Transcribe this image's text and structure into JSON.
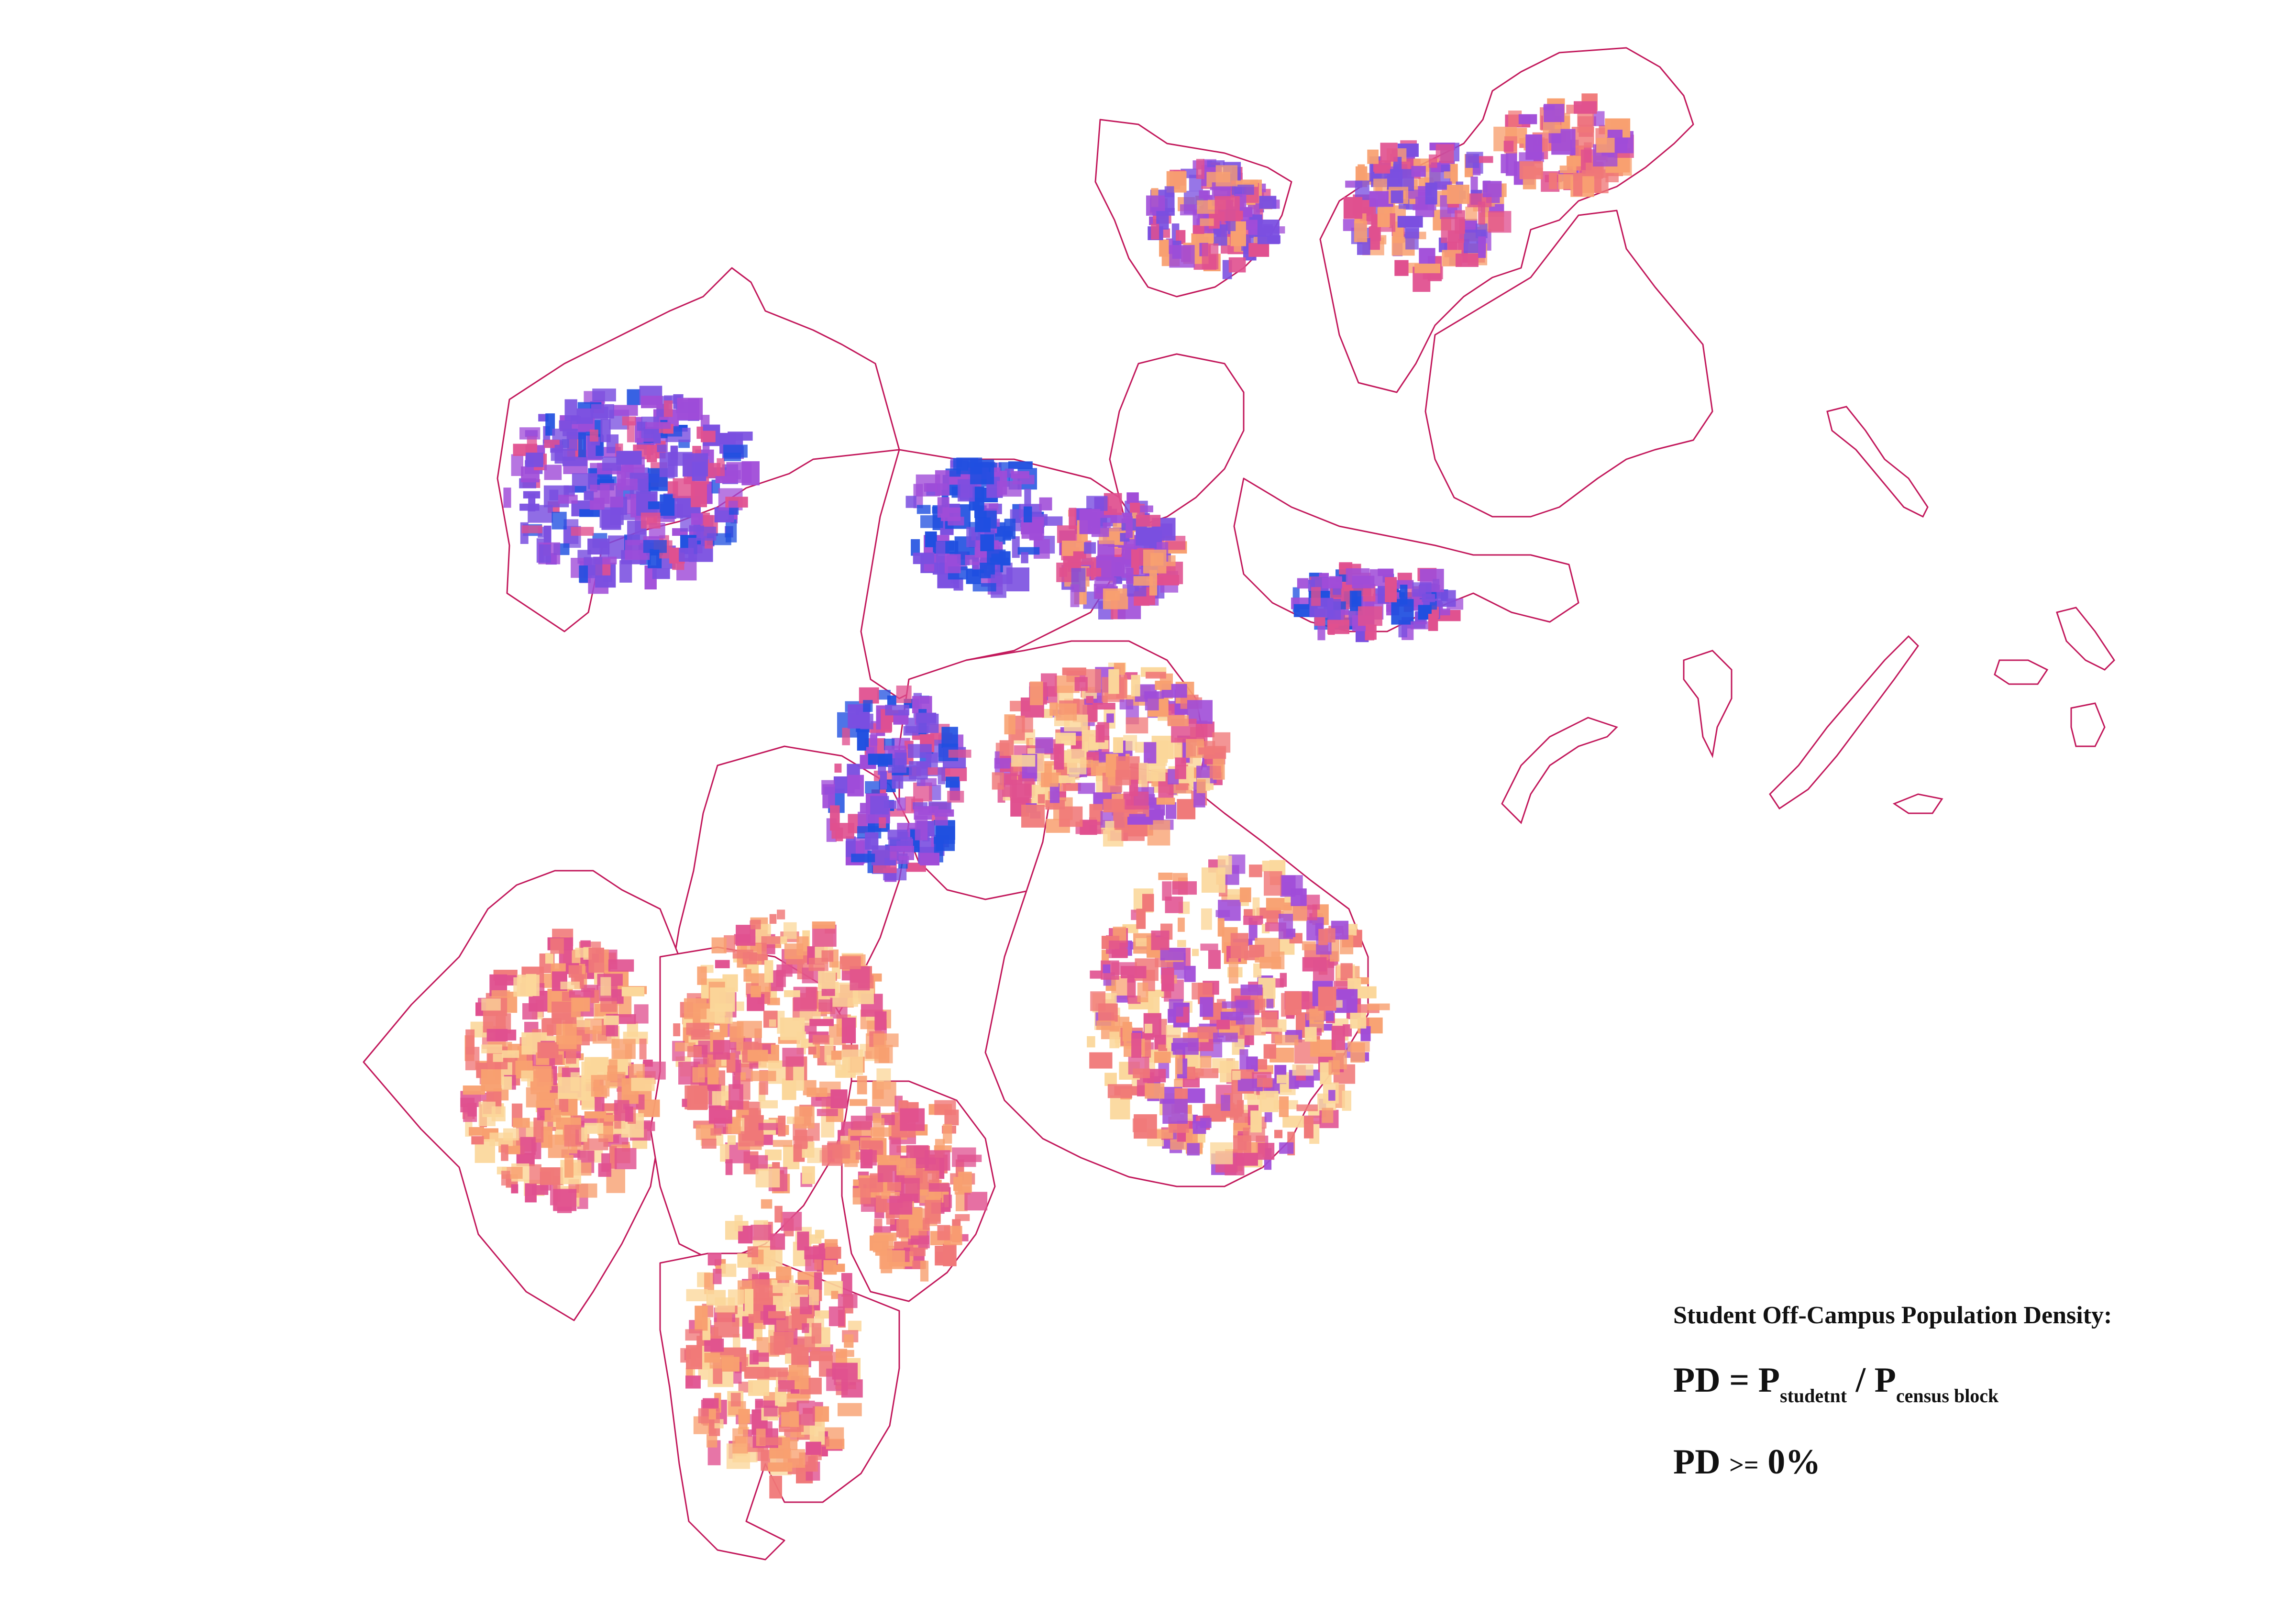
{
  "map": {
    "colors": {
      "boundary": "#c2185b",
      "very_high": "#1f4fe0",
      "high": "#7a4fe0",
      "mid_high": "#a04cd8",
      "mid": "#e0508f",
      "mid_low": "#f07878",
      "low": "#f8a070",
      "very_low": "#fbd79a"
    },
    "legend_colors_order": [
      "very_high",
      "high",
      "mid_high",
      "mid",
      "mid_low",
      "low",
      "very_low"
    ]
  },
  "legend": {
    "title": "Student Off-Campus Population Density:",
    "formula": {
      "lhs": "PD = P",
      "sub1": "studetnt",
      "divider": " / P",
      "sub2": "census block"
    },
    "threshold": {
      "lhs": "PD ",
      "op": ">=",
      "rhs": " 0%"
    }
  }
}
